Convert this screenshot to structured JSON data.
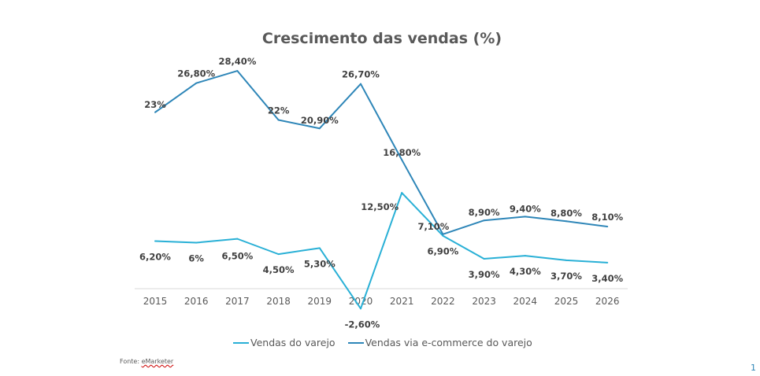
{
  "chart_data": {
    "type": "line",
    "title": "Crescimento das vendas (%)",
    "categories": [
      "2015",
      "2016",
      "2017",
      "2018",
      "2019",
      "2020",
      "2021",
      "2022",
      "2023",
      "2024",
      "2025",
      "2026"
    ],
    "series": [
      {
        "name": "Vendas do varejo",
        "color": "#29B0D6",
        "values": [
          6.2,
          6,
          6.5,
          4.5,
          5.3,
          -2.6,
          12.5,
          6.9,
          3.9,
          4.3,
          3.7,
          3.4
        ],
        "labels": [
          "6,20%",
          "6%",
          "6,50%",
          "4,50%",
          "5,30%",
          "-2,60%",
          "12,50%",
          "6,90%",
          "3,90%",
          "4,30%",
          "3,70%",
          "3,40%"
        ]
      },
      {
        "name": "Vendas via e-commerce do varejo",
        "color": "#2E86B8",
        "values": [
          23,
          26.8,
          28.4,
          22,
          20.9,
          26.7,
          16.8,
          7.1,
          8.9,
          9.4,
          8.8,
          8.1
        ],
        "labels": [
          "23%",
          "26,80%",
          "28,40%",
          "22%",
          "20,90%",
          "26,70%",
          "16,80%",
          "7,10%",
          "8,90%",
          "9,40%",
          "8,80%",
          "8,10%"
        ]
      }
    ],
    "xlabel": "",
    "ylabel": "",
    "grid": false,
    "legend": "bottom"
  },
  "source": {
    "prefix": "Fonte: ",
    "name": "eMarketer"
  },
  "page_number": "1"
}
